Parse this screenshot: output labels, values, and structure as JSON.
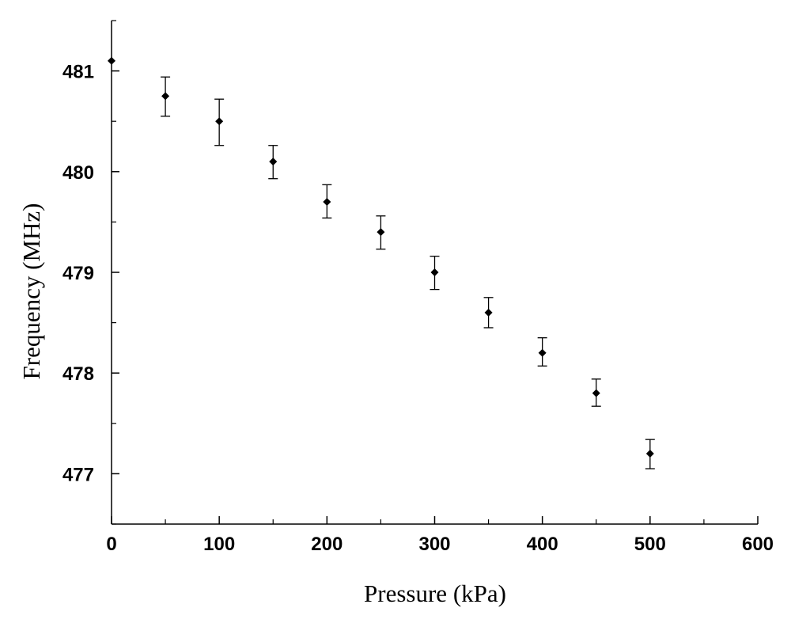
{
  "chart_data": {
    "type": "scatter",
    "title": "",
    "xlabel": "Pressure (kPa)",
    "ylabel": "Frequency (MHz)",
    "xlim": [
      0,
      600
    ],
    "ylim": [
      476.5,
      481.5
    ],
    "x_ticks": [
      0,
      100,
      200,
      300,
      400,
      500,
      600
    ],
    "y_ticks": [
      477,
      478,
      479,
      480,
      481
    ],
    "grid": false,
    "legend": "none",
    "series": [
      {
        "x": [
          0,
          50,
          100,
          150,
          200,
          250,
          300,
          350,
          400,
          450,
          500
        ],
        "y": [
          481.1,
          480.75,
          480.5,
          480.1,
          479.7,
          479.4,
          479.0,
          478.6,
          478.2,
          477.8,
          477.2
        ],
        "error_low": [
          0,
          0.2,
          0.24,
          0.17,
          0.16,
          0.17,
          0.17,
          0.15,
          0.13,
          0.13,
          0.15
        ],
        "error_high": [
          0,
          0.19,
          0.22,
          0.16,
          0.17,
          0.16,
          0.16,
          0.15,
          0.15,
          0.14,
          0.14
        ]
      }
    ],
    "colors": {
      "marker": "#000000",
      "axis": "#000000"
    }
  }
}
